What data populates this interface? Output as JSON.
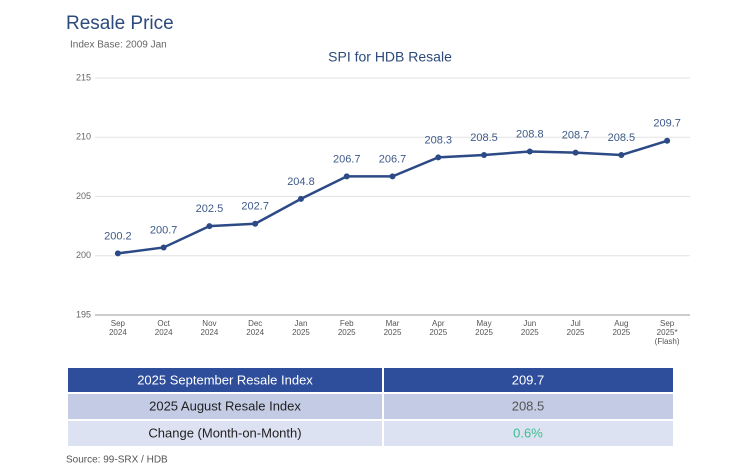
{
  "header": {
    "title": "Resale Price",
    "subtitle": "Index Base: 2009 Jan"
  },
  "chart_data": {
    "type": "line",
    "title": "SPI for HDB Resale",
    "categories": [
      "Sep\n2024",
      "Oct\n2024",
      "Nov\n2024",
      "Dec\n2024",
      "Jan\n2025",
      "Feb\n2025",
      "Mar\n2025",
      "Apr\n2025",
      "May\n2025",
      "Jun\n2025",
      "Jul\n2025",
      "Aug\n2025",
      "Sep\n2025*\n(Flash)"
    ],
    "series": [
      {
        "name": "SPI",
        "color": "#2c4a85",
        "values": [
          200.2,
          200.7,
          202.5,
          202.7,
          204.8,
          206.7,
          206.7,
          208.3,
          208.5,
          208.8,
          208.7,
          208.5,
          209.7
        ]
      }
    ],
    "ylim": [
      195,
      215
    ],
    "yticks": [
      195,
      200,
      205,
      210,
      215
    ],
    "grid": true
  },
  "table": {
    "rows": [
      [
        "2025 September Resale Index",
        "209.7"
      ],
      [
        "2025 August Resale Index",
        "208.5"
      ],
      [
        "Change (Month-on-Month)",
        "0.6%"
      ]
    ]
  },
  "footer": {
    "source": "Source: 99-SRX / HDB"
  }
}
